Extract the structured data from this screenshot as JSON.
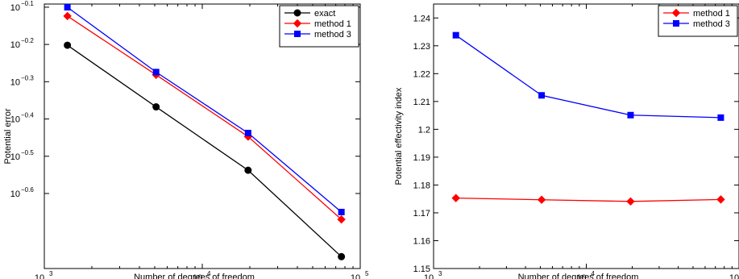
{
  "chart_data": [
    {
      "type": "line",
      "xlabel": "Number of degrees of freedom",
      "ylabel": "Potential error",
      "xscale": "log",
      "yscale": "log",
      "xlim": [
        1000,
        100000
      ],
      "ylim": [
        0.158,
        0.81
      ],
      "x_ticks": [
        1000,
        10000,
        100000
      ],
      "x_tick_labels": [
        {
          "base": "10",
          "exp": "3"
        },
        {
          "base": "10",
          "exp": "4"
        },
        {
          "base": "10",
          "exp": "5"
        }
      ],
      "y_ticks": [
        0.7943,
        0.631,
        0.5012,
        0.3981,
        0.3162,
        0.2512
      ],
      "y_tick_labels": [
        {
          "base": "10",
          "exp": "−0.1"
        },
        {
          "base": "10",
          "exp": "−0.2"
        },
        {
          "base": "10",
          "exp": "−0.3"
        },
        {
          "base": "10",
          "exp": "−0.4"
        },
        {
          "base": "10",
          "exp": "−0.5"
        },
        {
          "base": "10",
          "exp": "−0.6"
        }
      ],
      "legend_position": "top-right",
      "grid": false,
      "series": [
        {
          "name": "exact",
          "color": "#000000",
          "marker": "circle",
          "x": [
            1400,
            5100,
            19500,
            76000
          ],
          "y": [
            0.628,
            0.429,
            0.29,
            0.17
          ]
        },
        {
          "name": "method 1",
          "color": "#ff0000",
          "marker": "diamond",
          "x": [
            1400,
            5100,
            19500,
            76000
          ],
          "y": [
            0.752,
            0.523,
            0.357,
            0.214
          ]
        },
        {
          "name": "method 3",
          "color": "#0000ff",
          "marker": "square",
          "x": [
            1400,
            5100,
            19500,
            76000
          ],
          "y": [
            0.794,
            0.532,
            0.365,
            0.224
          ]
        }
      ]
    },
    {
      "type": "line",
      "xlabel": "Number of degrees of freedom",
      "ylabel": "Potential effectivity index",
      "xscale": "log",
      "yscale": "linear",
      "xlim": [
        1000,
        100000
      ],
      "ylim": [
        1.15,
        1.245
      ],
      "x_ticks": [
        1000,
        10000,
        100000
      ],
      "x_tick_labels": [
        {
          "base": "10",
          "exp": "3"
        },
        {
          "base": "10",
          "exp": "4"
        },
        {
          "base": "10",
          "exp": "5"
        }
      ],
      "y_ticks": [
        1.15,
        1.16,
        1.17,
        1.18,
        1.19,
        1.2,
        1.21,
        1.22,
        1.23,
        1.24
      ],
      "y_tick_labels": [
        "1.15",
        "1.16",
        "1.17",
        "1.18",
        "1.19",
        "1.2",
        "1.21",
        "1.22",
        "1.23",
        "1.24"
      ],
      "legend_position": "top-right",
      "grid": false,
      "series": [
        {
          "name": "method 1",
          "color": "#ff0000",
          "marker": "diamond",
          "x": [
            1400,
            5100,
            19500,
            76000
          ],
          "y": [
            1.1753,
            1.1747,
            1.1741,
            1.1748
          ]
        },
        {
          "name": "method 3",
          "color": "#0000ff",
          "marker": "square",
          "x": [
            1400,
            5100,
            19500,
            76000
          ],
          "y": [
            1.2338,
            1.2122,
            1.2051,
            1.2042
          ]
        }
      ]
    }
  ]
}
